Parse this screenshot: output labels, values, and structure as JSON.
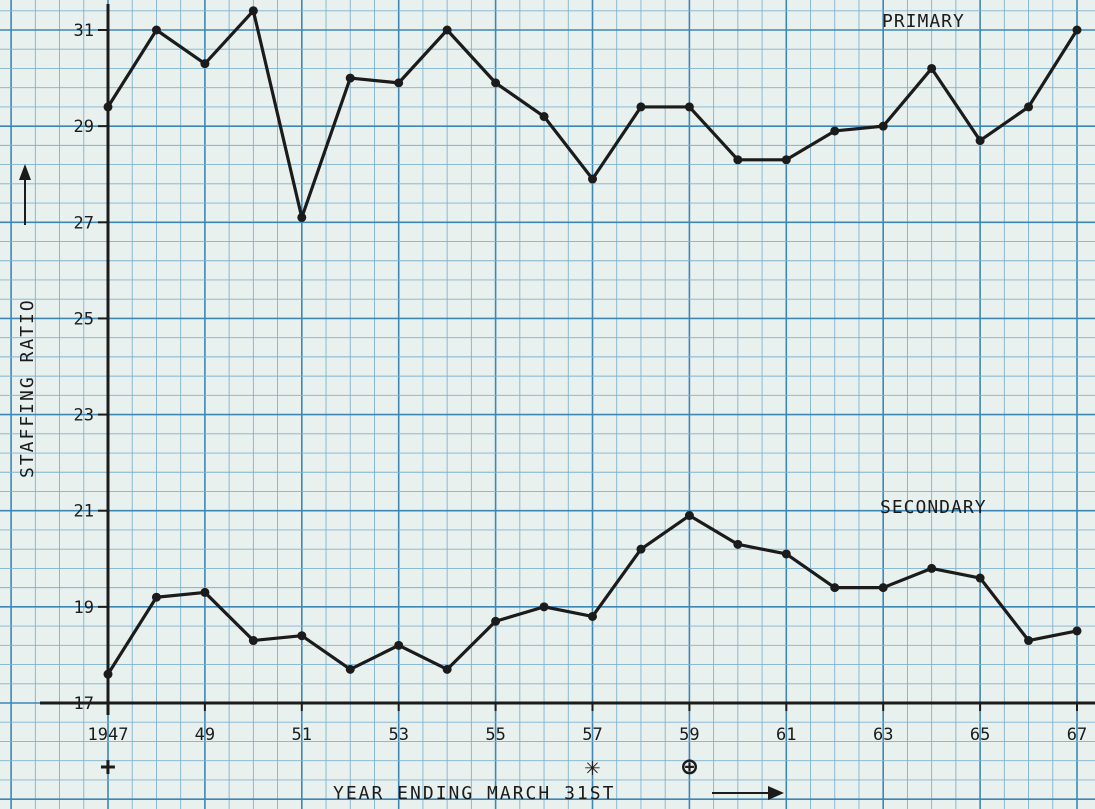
{
  "chart_data": {
    "type": "line",
    "xlabel": "YEAR ENDING MARCH 31ST",
    "ylabel": "STAFFING RATIO",
    "xlim": [
      1947,
      1967
    ],
    "ylim": [
      17,
      31
    ],
    "grid": true,
    "x_ticks": [
      {
        "value": 1947,
        "label": "1947"
      },
      {
        "value": 1949,
        "label": "49"
      },
      {
        "value": 1951,
        "label": "51"
      },
      {
        "value": 1953,
        "label": "53"
      },
      {
        "value": 1955,
        "label": "55"
      },
      {
        "value": 1957,
        "label": "57"
      },
      {
        "value": 1959,
        "label": "59"
      },
      {
        "value": 1961,
        "label": "61"
      },
      {
        "value": 1963,
        "label": "63"
      },
      {
        "value": 1965,
        "label": "65"
      },
      {
        "value": 1967,
        "label": "67"
      }
    ],
    "y_ticks": [
      {
        "value": 17,
        "label": "17"
      },
      {
        "value": 19,
        "label": "19"
      },
      {
        "value": 21,
        "label": "21"
      },
      {
        "value": 23,
        "label": "23"
      },
      {
        "value": 25,
        "label": "25"
      },
      {
        "value": 27,
        "label": "27"
      },
      {
        "value": 29,
        "label": "29"
      },
      {
        "value": 31,
        "label": "31"
      }
    ],
    "x": [
      1947,
      1948,
      1949,
      1950,
      1951,
      1952,
      1953,
      1954,
      1955,
      1956,
      1957,
      1958,
      1959,
      1960,
      1961,
      1962,
      1963,
      1964,
      1965,
      1966,
      1967
    ],
    "series": [
      {
        "name": "PRIMARY",
        "values": [
          29.4,
          31.0,
          30.3,
          31.4,
          27.1,
          30.0,
          29.9,
          31.0,
          29.9,
          29.2,
          27.9,
          29.4,
          29.4,
          28.3,
          28.3,
          28.9,
          29.0,
          30.2,
          28.7,
          29.4,
          31.0
        ]
      },
      {
        "name": "SECONDARY",
        "values": [
          17.6,
          19.2,
          19.3,
          18.3,
          18.4,
          17.7,
          18.2,
          17.7,
          18.7,
          19.0,
          18.8,
          20.2,
          20.9,
          20.3,
          20.1,
          19.4,
          19.4,
          19.8,
          19.6,
          18.3,
          18.5
        ]
      }
    ],
    "markers": [
      {
        "x": 1947,
        "symbol": "+"
      },
      {
        "x": 1957,
        "symbol": "✳"
      },
      {
        "x": 1959,
        "symbol": "⊕"
      }
    ],
    "colors": {
      "background": "#e9f1ef",
      "grid_minor": "#7fb2cf",
      "grid_major": "#3c87b6",
      "ink": "#1b1b1b"
    }
  }
}
